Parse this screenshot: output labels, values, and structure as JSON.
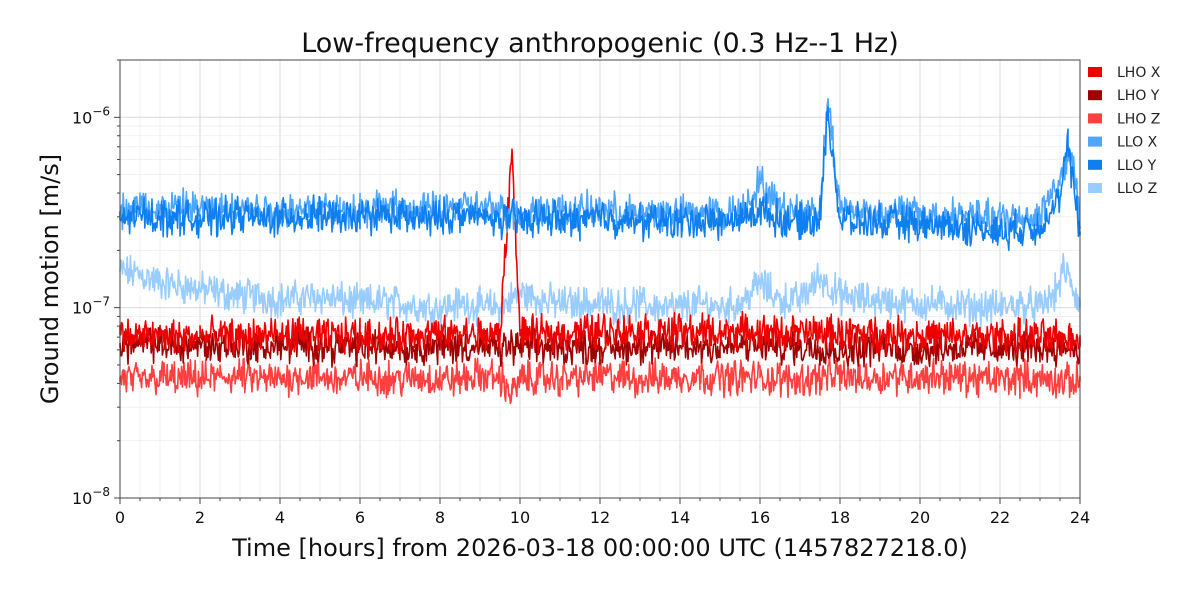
{
  "chart_data": {
    "type": "line",
    "title": "Low-frequency anthropogenic (0.3 Hz--1 Hz)",
    "xlabel": "Time [hours] from 2026-03-18 00:00:00 UTC (1457827218.0)",
    "ylabel": "Ground motion [m/s]",
    "xlim": [
      0,
      24
    ],
    "ylim": [
      1e-08,
      2e-06
    ],
    "yscale": "log",
    "grid": true,
    "legend_position": "right",
    "x_ticks": [
      0,
      2,
      4,
      6,
      8,
      10,
      12,
      14,
      16,
      18,
      20,
      22,
      24
    ],
    "x_tick_labels": [
      "0",
      "2",
      "4",
      "6",
      "8",
      "10",
      "12",
      "14",
      "16",
      "18",
      "20",
      "22",
      "24"
    ],
    "y_ticks": [
      {
        "value": 1e-08,
        "base": "10",
        "exp": "−8"
      },
      {
        "value": 1e-07,
        "base": "10",
        "exp": "−7"
      },
      {
        "value": 1e-06,
        "base": "10",
        "exp": "−6"
      }
    ],
    "series": [
      {
        "name": "LLO Z",
        "color": "#99ccff",
        "x": [
          0,
          0.5,
          1,
          1.5,
          2,
          2.5,
          3,
          3.5,
          4,
          4.5,
          5,
          5.5,
          6,
          6.5,
          7,
          7.5,
          8,
          8.5,
          9,
          9.5,
          10,
          10.5,
          11,
          11.5,
          12,
          12.5,
          13,
          13.5,
          14,
          14.5,
          15,
          15.5,
          16,
          16.5,
          17,
          17.5,
          18,
          18.5,
          19,
          19.5,
          20,
          20.5,
          21,
          21.5,
          22,
          22.5,
          23,
          23.4,
          23.6,
          23.8,
          24
        ],
        "values": [
          1.55e-07,
          1.5e-07,
          1.35e-07,
          1.3e-07,
          1.25e-07,
          1.2e-07,
          1.15e-07,
          1.15e-07,
          1.1e-07,
          1.12e-07,
          1.15e-07,
          1.1e-07,
          1.05e-07,
          1.08e-07,
          1.05e-07,
          1.02e-07,
          1e-07,
          1.05e-07,
          1.02e-07,
          1e-07,
          1.2e-07,
          1.1e-07,
          1.05e-07,
          1.05e-07,
          1.05e-07,
          1.02e-07,
          1.05e-07,
          1e-07,
          1e-07,
          1.05e-07,
          1e-07,
          1.05e-07,
          1.35e-07,
          1.1e-07,
          1.1e-07,
          1.45e-07,
          1.15e-07,
          1.1e-07,
          1.1e-07,
          1.05e-07,
          1.05e-07,
          1.05e-07,
          1.02e-07,
          1e-07,
          1e-07,
          1.05e-07,
          1e-07,
          1.2e-07,
          1.6e-07,
          1.3e-07,
          1e-07
        ]
      },
      {
        "name": "LHO Z",
        "color": "#ff4040",
        "x": [
          0,
          0.5,
          1,
          1.5,
          2,
          2.5,
          3,
          3.5,
          4,
          4.5,
          5,
          5.5,
          6,
          6.5,
          7,
          7.5,
          8,
          8.5,
          9,
          9.5,
          9.8,
          10,
          10.5,
          11,
          11.5,
          12,
          12.5,
          13,
          13.5,
          14,
          14.5,
          15,
          15.5,
          16,
          16.5,
          17,
          17.5,
          18,
          18.5,
          19,
          19.5,
          20,
          20.5,
          21,
          21.5,
          22,
          22.5,
          23,
          23.5,
          24
        ],
        "values": [
          4.3e-08,
          4.1e-08,
          4.3e-08,
          4.2e-08,
          4.2e-08,
          4.3e-08,
          4.4e-08,
          4.2e-08,
          4.2e-08,
          4.4e-08,
          4.3e-08,
          4.2e-08,
          4.3e-08,
          4.3e-08,
          4.2e-08,
          4.3e-08,
          4.2e-08,
          4.2e-08,
          4.4e-08,
          4.3e-08,
          3.5e-08,
          4.2e-08,
          4.3e-08,
          4.2e-08,
          4.3e-08,
          4.4e-08,
          4.3e-08,
          4.2e-08,
          4.3e-08,
          4.3e-08,
          4.4e-08,
          4.3e-08,
          4.3e-08,
          4.3e-08,
          4.2e-08,
          4.2e-08,
          4.3e-08,
          4.4e-08,
          4.3e-08,
          4.3e-08,
          4.4e-08,
          4.3e-08,
          4.4e-08,
          4.3e-08,
          4.2e-08,
          4.2e-08,
          4.3e-08,
          4.2e-08,
          4.1e-08,
          4.1e-08
        ]
      },
      {
        "name": "LHO Y",
        "color": "#a00000",
        "x": [
          0,
          0.5,
          1,
          1.5,
          2,
          2.5,
          3,
          3.5,
          4,
          4.5,
          5,
          5.5,
          6,
          6.5,
          7,
          7.5,
          8,
          8.5,
          9,
          9.5,
          10,
          10.5,
          11,
          11.5,
          12,
          12.5,
          13,
          13.5,
          14,
          14.5,
          15,
          15.5,
          16,
          16.5,
          17,
          17.5,
          18,
          18.5,
          19,
          19.5,
          20,
          20.5,
          21,
          21.5,
          22,
          22.5,
          23,
          23.5,
          24
        ],
        "values": [
          6.5e-08,
          6.4e-08,
          6.5e-08,
          6.3e-08,
          6.4e-08,
          6.3e-08,
          6.4e-08,
          6.2e-08,
          6.3e-08,
          6.4e-08,
          6.3e-08,
          6.2e-08,
          6.2e-08,
          6.3e-08,
          6.2e-08,
          6.3e-08,
          6.2e-08,
          6.3e-08,
          6.2e-08,
          6.1e-08,
          6.3e-08,
          6.2e-08,
          6.1e-08,
          6.3e-08,
          6.2e-08,
          6.2e-08,
          6.3e-08,
          6.1e-08,
          6.2e-08,
          6.3e-08,
          6.2e-08,
          6.3e-08,
          6.4e-08,
          6.3e-08,
          6.2e-08,
          6.2e-08,
          6e-08,
          6.1e-08,
          6.2e-08,
          6.1e-08,
          6e-08,
          6.2e-08,
          6.2e-08,
          6.1e-08,
          6.2e-08,
          6.1e-08,
          6.2e-08,
          6.3e-08,
          6.2e-08
        ]
      },
      {
        "name": "LHO X",
        "color": "#ee0000",
        "x": [
          0,
          0.5,
          1,
          1.5,
          2,
          2.5,
          3,
          3.5,
          4,
          4.5,
          5,
          5.5,
          6,
          6.5,
          7,
          7.5,
          8,
          8.5,
          9,
          9.5,
          9.8,
          10,
          10.5,
          11,
          11.5,
          12,
          12.5,
          13,
          13.5,
          14,
          14.5,
          15,
          15.5,
          16,
          16.5,
          17,
          17.5,
          18,
          18.5,
          19,
          19.5,
          20,
          20.5,
          21,
          21.5,
          22,
          22.5,
          23,
          23.5,
          24
        ],
        "values": [
          7.2e-08,
          7e-08,
          7.1e-08,
          7e-08,
          7e-08,
          7.1e-08,
          7e-08,
          7.2e-08,
          7.1e-08,
          7.2e-08,
          7e-08,
          7.1e-08,
          7.2e-08,
          7e-08,
          7.1e-08,
          7.3e-08,
          7.2e-08,
          7.3e-08,
          7.2e-08,
          7.1e-08,
          6.8e-07,
          7.3e-08,
          7.2e-08,
          7.3e-08,
          7.5e-08,
          7.6e-08,
          7.5e-08,
          7.6e-08,
          7.5e-08,
          7.5e-08,
          7.5e-08,
          7.4e-08,
          7.5e-08,
          7.4e-08,
          7.3e-08,
          7.4e-08,
          7.4e-08,
          7.3e-08,
          7.3e-08,
          7.2e-08,
          7.3e-08,
          7.2e-08,
          7e-08,
          7.1e-08,
          7e-08,
          7.1e-08,
          7e-08,
          7e-08,
          6.9e-08,
          7e-08
        ]
      },
      {
        "name": "LLO X",
        "color": "#4da6ff",
        "x": [
          0,
          0.5,
          1,
          1.5,
          2,
          2.5,
          3,
          3.5,
          4,
          4.5,
          5,
          5.5,
          6,
          6.5,
          7,
          7.5,
          8,
          8.5,
          9,
          9.5,
          10,
          10.5,
          11,
          11.5,
          12,
          12.5,
          13,
          13.5,
          14,
          14.5,
          15,
          15.5,
          16,
          16.5,
          17,
          17.5,
          17.7,
          18,
          18.5,
          19,
          19.5,
          20,
          20.5,
          21,
          21.5,
          22,
          22.5,
          23,
          23.5,
          23.8,
          24
        ],
        "values": [
          3.2e-07,
          3.4e-07,
          3.3e-07,
          3.4e-07,
          3.3e-07,
          3.2e-07,
          3.4e-07,
          3.3e-07,
          3.2e-07,
          3.3e-07,
          3.4e-07,
          3.2e-07,
          3.3e-07,
          3.4e-07,
          3.3e-07,
          3.2e-07,
          3.3e-07,
          3.4e-07,
          3.3e-07,
          3.2e-07,
          3.1e-07,
          3.3e-07,
          3.2e-07,
          3.2e-07,
          3.3e-07,
          3.2e-07,
          3.1e-07,
          3.2e-07,
          3.1e-07,
          3.2e-07,
          3.1e-07,
          3.2e-07,
          4.6e-07,
          3.3e-07,
          3.2e-07,
          3.3e-07,
          1.25e-06,
          3.3e-07,
          3.2e-07,
          3.1e-07,
          3.2e-07,
          3.1e-07,
          3e-07,
          3.1e-07,
          3e-07,
          2.9e-07,
          3e-07,
          3.1e-07,
          4.8e-07,
          6.5e-07,
          2.6e-07
        ]
      },
      {
        "name": "LLO Y",
        "color": "#0f7ff0",
        "x": [
          0,
          0.5,
          1,
          1.5,
          2,
          2.5,
          3,
          3.5,
          4,
          4.5,
          5,
          5.5,
          6,
          6.5,
          7,
          7.5,
          8,
          8.5,
          9,
          9.5,
          10,
          10.5,
          11,
          11.5,
          12,
          12.5,
          13,
          13.5,
          14,
          14.5,
          15,
          15.5,
          16,
          16.5,
          17,
          17.5,
          17.7,
          18,
          18.5,
          19,
          19.5,
          20,
          20.5,
          21,
          21.5,
          22,
          22.5,
          23,
          23.5,
          23.7,
          24
        ],
        "values": [
          2.9e-07,
          3.1e-07,
          3e-07,
          3e-07,
          2.9e-07,
          3e-07,
          3.1e-07,
          2.9e-07,
          3e-07,
          3e-07,
          3.1e-07,
          2.9e-07,
          3e-07,
          3.1e-07,
          3e-07,
          2.9e-07,
          3e-07,
          3.1e-07,
          3e-07,
          2.9e-07,
          2.9e-07,
          3e-07,
          2.9e-07,
          2.9e-07,
          3e-07,
          2.9e-07,
          2.8e-07,
          2.9e-07,
          2.8e-07,
          2.9e-07,
          2.8e-07,
          2.9e-07,
          3.3e-07,
          2.9e-07,
          2.8e-07,
          3e-07,
          1.1e-06,
          2.9e-07,
          2.8e-07,
          2.8e-07,
          2.8e-07,
          2.7e-07,
          2.7e-07,
          2.7e-07,
          2.6e-07,
          2.5e-07,
          2.6e-07,
          2.7e-07,
          3.8e-07,
          7e-07,
          2.5e-07
        ]
      }
    ],
    "legend": [
      {
        "label": "LHO X",
        "color": "#ee0000"
      },
      {
        "label": "LHO Y",
        "color": "#a00000"
      },
      {
        "label": "LHO Z",
        "color": "#ff4040"
      },
      {
        "label": "LLO X",
        "color": "#4da6ff"
      },
      {
        "label": "LLO Y",
        "color": "#0f7ff0"
      },
      {
        "label": "LLO Z",
        "color": "#99ccff"
      }
    ]
  }
}
